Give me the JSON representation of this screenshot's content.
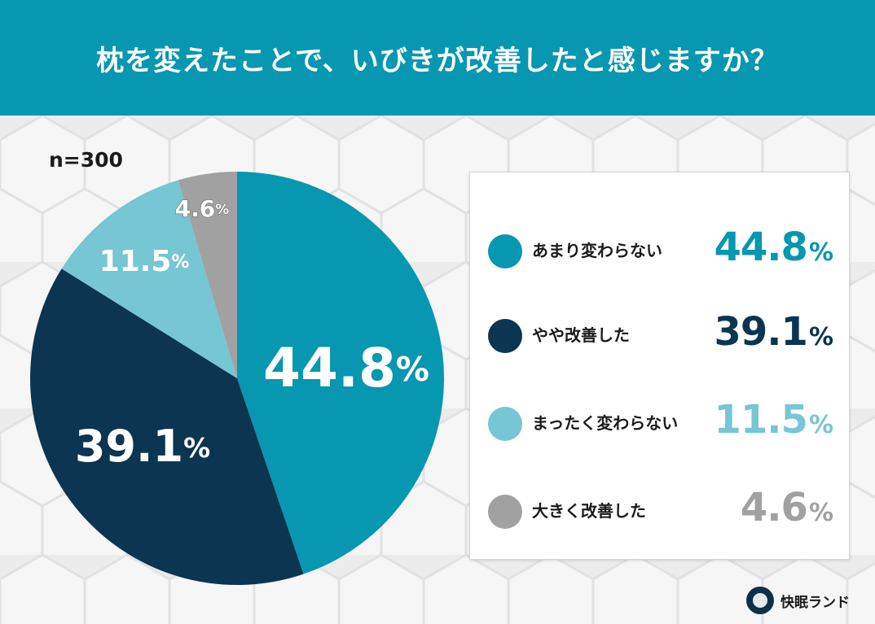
{
  "header": {
    "title": "枕を変えたことで、いびきが改善したと感じますか？"
  },
  "sample": "n=300",
  "chart_data": {
    "type": "pie",
    "categories": [
      "あまり変わらない",
      "やや改善した",
      "まったく変わらない",
      "大きく改善した"
    ],
    "values": [
      44.8,
      39.1,
      11.5,
      4.6
    ],
    "value_labels": [
      "44.8",
      "39.1",
      "11.5",
      "4.6"
    ],
    "unit": "%",
    "colors": [
      "#0797b1",
      "#0b3550",
      "#76c6d4",
      "#a1a1a1"
    ],
    "start_angle": "12 o'clock",
    "direction": "clockwise",
    "legend_position": "right"
  },
  "brand": {
    "name": "快眠ランド",
    "logo_icon": "sleeping-figure-icon"
  }
}
